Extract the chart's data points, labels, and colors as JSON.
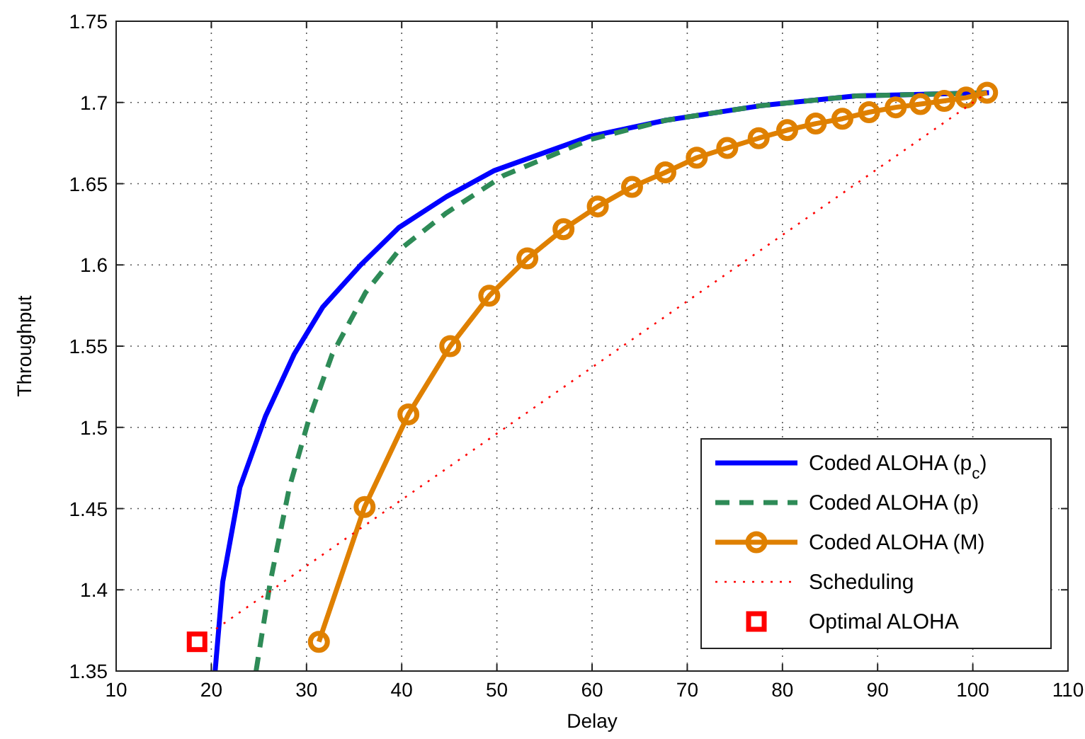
{
  "chart_data": {
    "type": "line",
    "xlabel": "Delay",
    "ylabel": "Throughput",
    "xlim": [
      10,
      110
    ],
    "ylim": [
      1.35,
      1.75
    ],
    "xticks": [
      10,
      20,
      30,
      40,
      50,
      60,
      70,
      80,
      90,
      100,
      110
    ],
    "yticks": [
      1.35,
      1.4,
      1.45,
      1.5,
      1.55,
      1.6,
      1.65,
      1.7,
      1.75
    ],
    "grid": true,
    "legend": "bottom right",
    "series": [
      {
        "name": "Coded ALOHA (p$_{c}$)",
        "color": "#0000ff",
        "line_style": "solid",
        "marker": "none",
        "x": [
          20.4,
          21.2,
          23.0,
          25.7,
          28.7,
          31.7,
          35.7,
          39.7,
          44.7,
          49.7,
          59.7,
          67.7,
          77.7,
          87.7,
          101.7
        ],
        "values": [
          1.35,
          1.405,
          1.463,
          1.507,
          1.545,
          1.574,
          1.6,
          1.623,
          1.642,
          1.658,
          1.679,
          1.689,
          1.698,
          1.704,
          1.706
        ]
      },
      {
        "name": "Coded ALOHA (p)",
        "color": "#2e8b57",
        "line_style": "dashed",
        "marker": "none",
        "x": [
          24.7,
          26.2,
          28.2,
          30.2,
          32.7,
          36.2,
          39.7,
          44.7,
          50.7,
          59.7,
          67.7,
          77.7,
          87.7,
          101.7
        ],
        "values": [
          1.35,
          1.405,
          1.463,
          1.504,
          1.545,
          1.583,
          1.609,
          1.632,
          1.655,
          1.677,
          1.689,
          1.698,
          1.704,
          1.706
        ]
      },
      {
        "name": "Coded ALOHA (M)",
        "color": "#df8000",
        "line_style": "solid",
        "marker": "circle",
        "x": [
          31.3,
          36.1,
          40.7,
          45.1,
          49.2,
          53.2,
          57.0,
          60.6,
          64.2,
          67.7,
          71.0,
          74.2,
          77.5,
          80.5,
          83.5,
          86.3,
          89.1,
          91.9,
          94.5,
          97.0,
          99.3,
          101.5
        ],
        "values": [
          1.368,
          1.451,
          1.508,
          1.55,
          1.581,
          1.604,
          1.622,
          1.636,
          1.648,
          1.657,
          1.666,
          1.672,
          1.678,
          1.683,
          1.687,
          1.69,
          1.694,
          1.697,
          1.699,
          1.701,
          1.703,
          1.706
        ]
      },
      {
        "name": "Scheduling",
        "color": "#ff0000",
        "line_style": "dotted",
        "marker": "none",
        "x": [
          20.5,
          101.5
        ],
        "values": [
          1.376,
          1.706
        ]
      },
      {
        "name": "Optimal ALOHA",
        "type": "scatter",
        "color": "#ff0000",
        "marker": "square",
        "x": [
          18.5
        ],
        "values": [
          1.368
        ]
      }
    ]
  }
}
